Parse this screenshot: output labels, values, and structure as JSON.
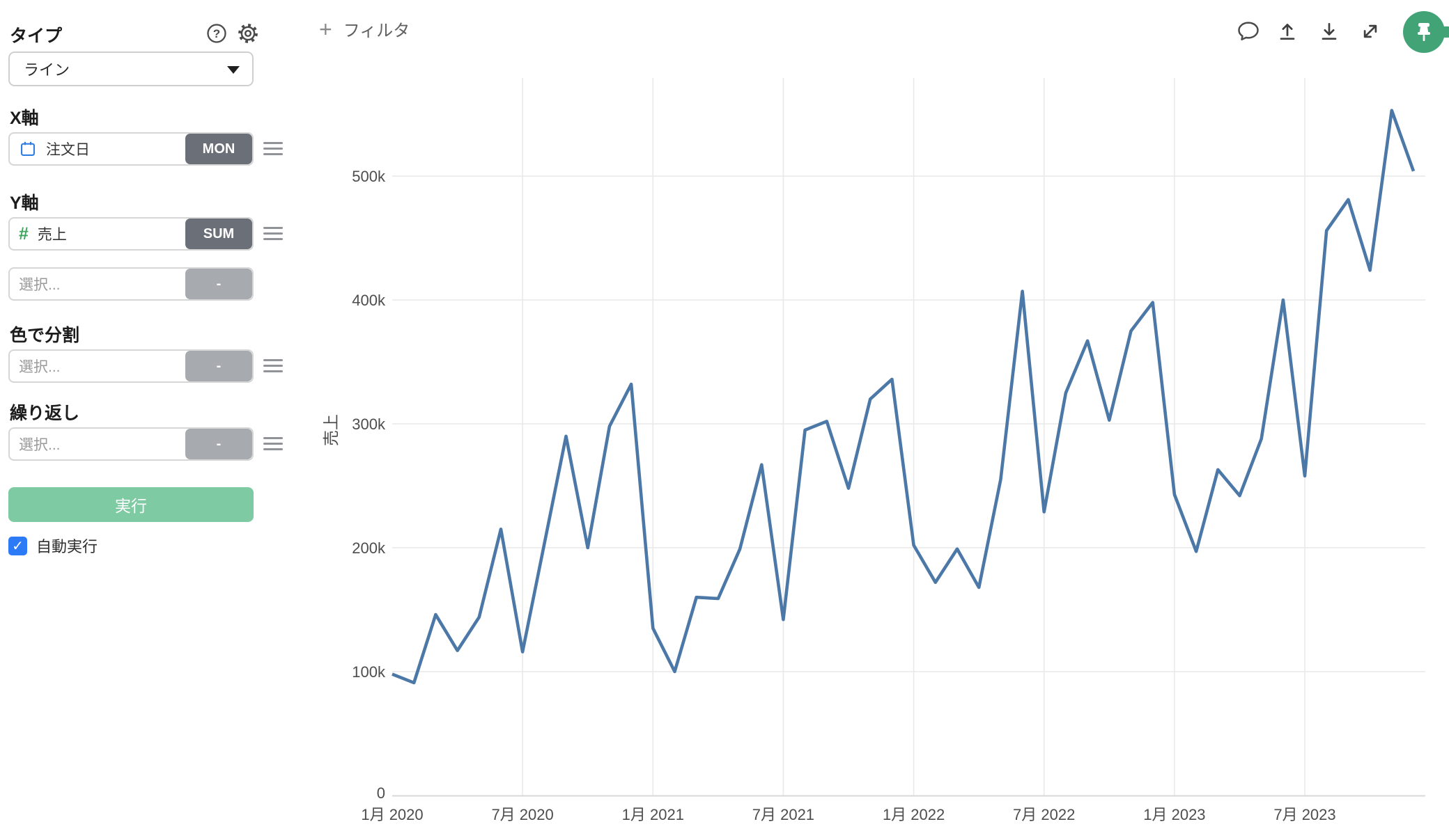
{
  "sidebar": {
    "type_label": "タイプ",
    "type_value": "ライン",
    "x_axis_label": "X軸",
    "x_field": "注文日",
    "x_agg": "MON",
    "y_axis_label": "Y軸",
    "y_field": "売上",
    "y_agg": "SUM",
    "select_placeholder": "選択...",
    "empty_agg": "-",
    "color_split_label": "色で分割",
    "repeat_label": "繰り返し",
    "run_label": "実行",
    "autorun_label": "自動実行",
    "autorun_checked": true,
    "help_icon": "?"
  },
  "toolbar": {
    "filter_label": "フィルタ",
    "plus": "+"
  },
  "colors": {
    "line": "#4c78a8",
    "grid": "#e9e9e9",
    "axis_line": "#d9d9d9",
    "tick_text": "#4d4d4d",
    "run_button": "#7ecaa3",
    "pin_green": "#41a376",
    "checkbox_blue": "#2d7af7",
    "badge_dark": "#6b7078",
    "badge_light": "#a7abb0",
    "calendar_blue": "#2f7de1",
    "hash_green": "#3ca45c"
  },
  "chart_data": {
    "type": "line",
    "title": "",
    "xlabel": "",
    "ylabel": "売上",
    "grid": true,
    "legend": "none",
    "ylim": [
      0,
      560000
    ],
    "y_tick_values": [
      0,
      100000,
      200000,
      300000,
      400000,
      500000
    ],
    "y_tick_labels": [
      "0",
      "100k",
      "200k",
      "300k",
      "400k",
      "500k"
    ],
    "x_tick_indices": [
      0,
      6,
      12,
      18,
      24,
      30,
      36,
      42
    ],
    "x_tick_labels": [
      "1月 2020",
      "7月 2020",
      "1月 2021",
      "7月 2021",
      "1月 2022",
      "7月 2022",
      "1月 2023",
      "7月 2023"
    ],
    "line_color": "#4c78a8",
    "x": [
      "2020-01",
      "2020-02",
      "2020-03",
      "2020-04",
      "2020-05",
      "2020-06",
      "2020-07",
      "2020-08",
      "2020-09",
      "2020-10",
      "2020-11",
      "2020-12",
      "2021-01",
      "2021-02",
      "2021-03",
      "2021-04",
      "2021-05",
      "2021-06",
      "2021-07",
      "2021-08",
      "2021-09",
      "2021-10",
      "2021-11",
      "2021-12",
      "2022-01",
      "2022-02",
      "2022-03",
      "2022-04",
      "2022-05",
      "2022-06",
      "2022-07",
      "2022-08",
      "2022-09",
      "2022-10",
      "2022-11",
      "2022-12",
      "2023-01",
      "2023-02",
      "2023-03",
      "2023-04",
      "2023-05",
      "2023-06",
      "2023-07",
      "2023-08",
      "2023-09",
      "2023-10",
      "2023-11",
      "2023-12"
    ],
    "values": [
      98000,
      91000,
      146000,
      117000,
      144000,
      215000,
      116000,
      203000,
      290000,
      200000,
      298000,
      332000,
      135000,
      100000,
      160000,
      159000,
      199000,
      267000,
      142000,
      295000,
      302000,
      248000,
      320000,
      336000,
      202000,
      172000,
      199000,
      168000,
      255000,
      407000,
      229000,
      325000,
      367000,
      303000,
      375000,
      398000,
      243000,
      197000,
      263000,
      242000,
      288000,
      400000,
      258000,
      456000,
      481000,
      424000,
      553000,
      504000
    ]
  }
}
